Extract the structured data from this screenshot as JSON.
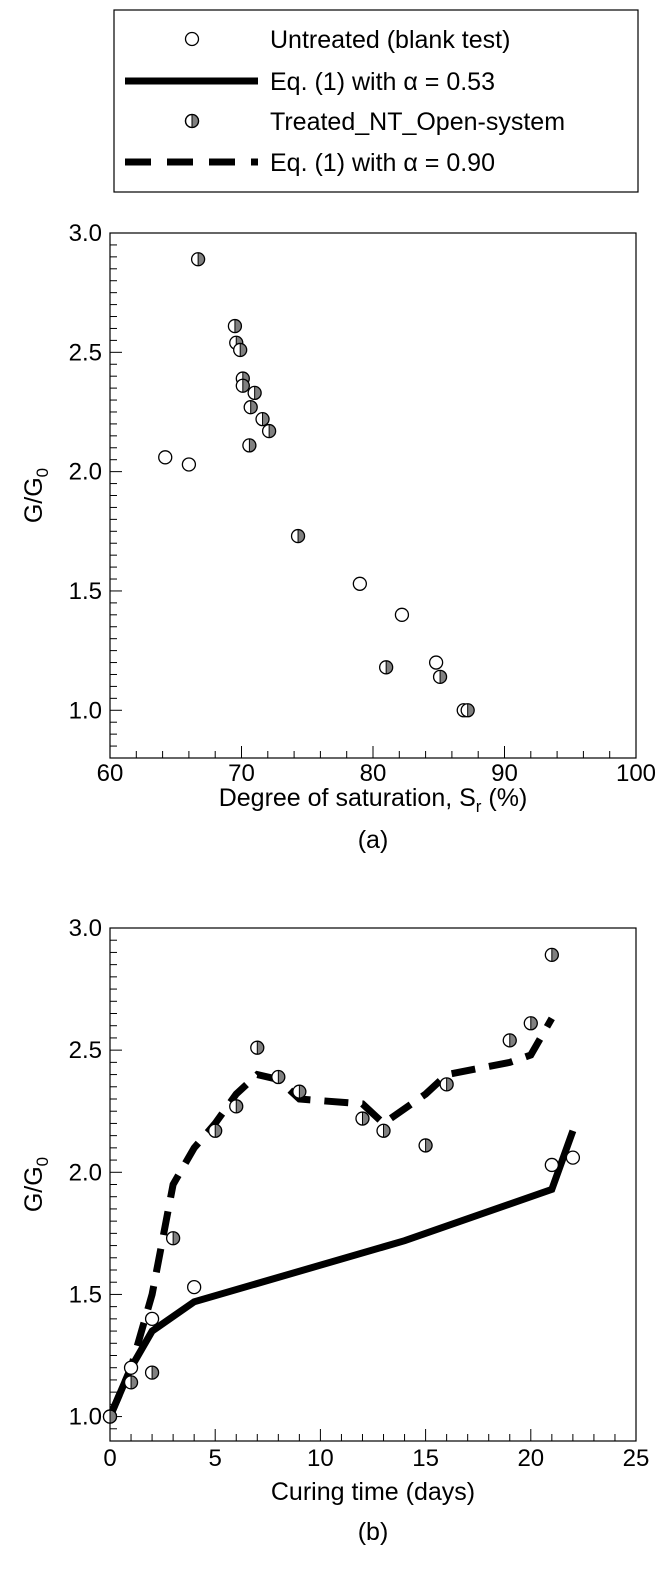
{
  "legend": {
    "items": [
      {
        "label": "Untreated (blank test)",
        "symbol": "open-circle-marker"
      },
      {
        "label": "Eq. (1) with α = 0.53",
        "symbol": "solid-line"
      },
      {
        "label": "Treated_NT_Open-system",
        "symbol": "half-filled-circle-marker"
      },
      {
        "label": "Eq. (1) with α = 0.90",
        "symbol": "dashed-line"
      }
    ]
  },
  "colors": {
    "ink": "#000000",
    "marker_fill": "#808080",
    "background": "#ffffff"
  },
  "chart_data": [
    {
      "type": "scatter",
      "panel_label": "(a)",
      "xlabel": "Degree of saturation, S",
      "xlabel_sub": "r",
      "xlabel_suffix": " (%)",
      "ylabel": "G/G",
      "ylabel_sub": "0",
      "xlim": [
        60,
        100
      ],
      "ylim": [
        0.8,
        3.0
      ],
      "xticks": [
        60,
        70,
        80,
        90,
        100
      ],
      "xtick_labels": [
        "60",
        "70",
        "80",
        "90",
        "100"
      ],
      "yticks": [
        1.0,
        1.5,
        2.0,
        2.5,
        3.0
      ],
      "ytick_labels": [
        "1.0",
        "1.5",
        "2.0",
        "2.5",
        "3.0"
      ],
      "grid": false,
      "series": [
        {
          "marker": "open",
          "points": [
            [
              64.2,
              2.06
            ],
            [
              66.0,
              2.03
            ],
            [
              79.0,
              1.53
            ],
            [
              82.2,
              1.4
            ],
            [
              84.8,
              1.2
            ],
            [
              86.9,
              1.0
            ]
          ]
        },
        {
          "marker": "half",
          "points": [
            [
              66.7,
              2.89
            ],
            [
              69.5,
              2.61
            ],
            [
              69.6,
              2.54
            ],
            [
              69.9,
              2.51
            ],
            [
              70.1,
              2.39
            ],
            [
              70.1,
              2.36
            ],
            [
              70.7,
              2.27
            ],
            [
              70.6,
              2.11
            ],
            [
              71.0,
              2.33
            ],
            [
              71.6,
              2.22
            ],
            [
              72.1,
              2.17
            ],
            [
              74.3,
              1.73
            ],
            [
              81.0,
              1.18
            ],
            [
              85.1,
              1.14
            ],
            [
              87.2,
              1.0
            ]
          ]
        }
      ]
    },
    {
      "type": "line",
      "panel_label": "(b)",
      "xlabel": "Curing time (days)",
      "ylabel": "G/G",
      "ylabel_sub": "0",
      "xlim": [
        0,
        25
      ],
      "ylim": [
        0.9,
        3.0
      ],
      "xticks": [
        0,
        5,
        10,
        15,
        20,
        25
      ],
      "xtick_labels": [
        "0",
        "5",
        "10",
        "15",
        "20",
        "25"
      ],
      "yticks": [
        1.0,
        1.5,
        2.0,
        2.5,
        3.0
      ],
      "ytick_labels": [
        "1.0",
        "1.5",
        "2.0",
        "2.5",
        "3.0"
      ],
      "grid": false,
      "series": [
        {
          "marker": "open",
          "points": [
            [
              0,
              1.0
            ],
            [
              1,
              1.2
            ],
            [
              2,
              1.4
            ],
            [
              4,
              1.53
            ],
            [
              21,
              2.03
            ],
            [
              22,
              2.06
            ]
          ]
        },
        {
          "marker": "half",
          "points": [
            [
              0,
              1.0
            ],
            [
              1,
              1.14
            ],
            [
              2,
              1.18
            ],
            [
              3,
              1.73
            ],
            [
              5,
              2.17
            ],
            [
              6,
              2.27
            ],
            [
              7,
              2.51
            ],
            [
              8,
              2.39
            ],
            [
              9,
              2.33
            ],
            [
              12,
              2.22
            ],
            [
              13,
              2.17
            ],
            [
              15,
              2.11
            ],
            [
              16,
              2.36
            ],
            [
              19,
              2.54
            ],
            [
              20,
              2.61
            ],
            [
              21,
              2.89
            ]
          ]
        },
        {
          "line": "solid",
          "points": [
            [
              0,
              1.0
            ],
            [
              1,
              1.2
            ],
            [
              2,
              1.35
            ],
            [
              4,
              1.47
            ],
            [
              14,
              1.72
            ],
            [
              21,
              1.93
            ],
            [
              22,
              2.17
            ]
          ]
        },
        {
          "line": "dashed",
          "points": [
            [
              0,
              1.0
            ],
            [
              1,
              1.2
            ],
            [
              2,
              1.5
            ],
            [
              3,
              1.95
            ],
            [
              4,
              2.1
            ],
            [
              5,
              2.2
            ],
            [
              6,
              2.32
            ],
            [
              7,
              2.4
            ],
            [
              8,
              2.38
            ],
            [
              9,
              2.3
            ],
            [
              12,
              2.28
            ],
            [
              13,
              2.2
            ],
            [
              15,
              2.32
            ],
            [
              16,
              2.4
            ],
            [
              19,
              2.45
            ],
            [
              20,
              2.48
            ],
            [
              21,
              2.63
            ]
          ]
        }
      ]
    }
  ]
}
